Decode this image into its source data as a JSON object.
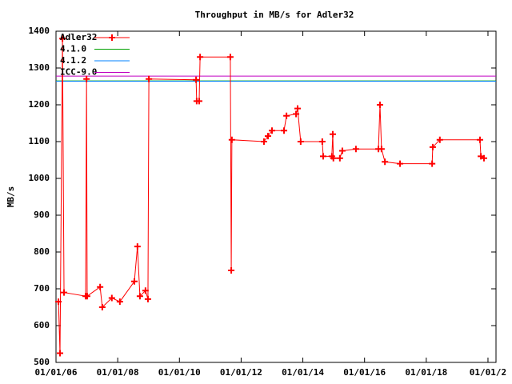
{
  "chart_data": {
    "type": "line",
    "title": "Throughput in MB/s for Adler32",
    "ylabel": "MB/s",
    "xlim": [
      2006,
      2020.26
    ],
    "ylim": [
      500,
      1400
    ],
    "xticks": [
      {
        "value": 2006,
        "label": "01/01/06"
      },
      {
        "value": 2008,
        "label": "01/01/08"
      },
      {
        "value": 2010,
        "label": "01/01/10"
      },
      {
        "value": 2012,
        "label": "01/01/12"
      },
      {
        "value": 2014,
        "label": "01/01/14"
      },
      {
        "value": 2016,
        "label": "01/01/16"
      },
      {
        "value": 2018,
        "label": "01/01/18"
      },
      {
        "value": 2020,
        "label": "01/01/2"
      }
    ],
    "yticks": [
      500,
      600,
      700,
      800,
      900,
      1000,
      1100,
      1200,
      1300,
      1400
    ],
    "legend": "top-left",
    "series": [
      {
        "name": "Adler32",
        "color": "#ff0000",
        "markers": true,
        "x": [
          2006.08,
          2006.13,
          2006.21,
          2006.26,
          2006.96,
          2006.99,
          2007.01,
          2007.43,
          2007.5,
          2007.81,
          2008.07,
          2008.54,
          2008.64,
          2008.72,
          2008.9,
          2008.98,
          2009.01,
          2010.54,
          2010.56,
          2010.64,
          2010.67,
          2011.65,
          2011.68,
          2011.7,
          2012.74,
          2012.87,
          2013.0,
          2013.39,
          2013.47,
          2013.78,
          2013.83,
          2013.93,
          2014.63,
          2014.66,
          2014.94,
          2014.97,
          2014.99,
          2015.2,
          2015.28,
          2015.72,
          2016.45,
          2016.5,
          2016.55,
          2016.66,
          2017.15,
          2018.19,
          2018.21,
          2018.44,
          2019.74,
          2019.77,
          2019.87
        ],
        "values": [
          665,
          525,
          1380,
          690,
          680,
          1270,
          680,
          705,
          650,
          675,
          665,
          720,
          815,
          680,
          695,
          672,
          1270,
          1268,
          1210,
          1210,
          1330,
          1330,
          750,
          1105,
          1100,
          1115,
          1130,
          1130,
          1170,
          1175,
          1190,
          1100,
          1100,
          1060,
          1060,
          1120,
          1055,
          1055,
          1075,
          1080,
          1080,
          1200,
          1080,
          1045,
          1040,
          1040,
          1085,
          1105,
          1105,
          1060,
          1055
        ]
      },
      {
        "name": "4.1.0",
        "color": "#00a000",
        "markers": false,
        "x": [
          2006,
          2020.26
        ],
        "values": [
          1265,
          1265
        ]
      },
      {
        "name": "4.1.2",
        "color": "#0080ff",
        "markers": false,
        "x": [
          2006,
          2020.26
        ],
        "values": [
          1264,
          1264
        ]
      },
      {
        "name": "ICC-9.0",
        "color": "#c000c0",
        "markers": false,
        "x": [
          2006,
          2020.26
        ],
        "values": [
          1278,
          1278
        ]
      }
    ]
  }
}
